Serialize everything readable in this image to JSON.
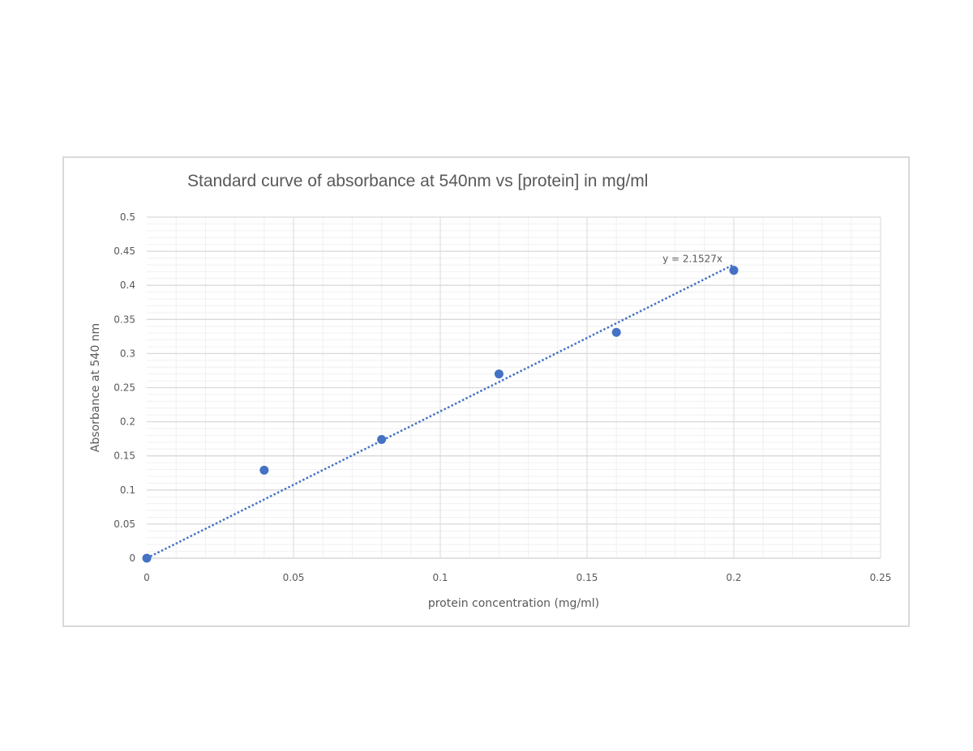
{
  "chart_data": {
    "type": "scatter",
    "title": "Standard curve of absorbance at 540nm vs [protein] in mg/ml",
    "xlabel": "protein concentration (mg/ml)",
    "ylabel": "Absorbance at 540 nm",
    "xlim": [
      0,
      0.25
    ],
    "ylim": [
      0,
      0.5
    ],
    "x_ticks": [
      "0",
      "0.05",
      "0.1",
      "0.15",
      "0.2",
      "0.25"
    ],
    "y_ticks": [
      "0",
      "0.05",
      "0.1",
      "0.15",
      "0.2",
      "0.25",
      "0.3",
      "0.35",
      "0.4",
      "0.45",
      "0.5"
    ],
    "grid": true,
    "legend": "none",
    "series": [
      {
        "x": [
          0,
          0.04,
          0.08,
          0.12,
          0.16,
          0.2
        ],
        "y": [
          0,
          0.129,
          0.174,
          0.27,
          0.331,
          0.422
        ],
        "color": "#4472c4"
      }
    ],
    "trendline": {
      "type": "linear",
      "slope": 2.1527,
      "intercept": 0,
      "x_range": [
        0,
        0.2
      ],
      "equation": "y = 2.1527x",
      "color": "#4472c4",
      "style": "dotted"
    }
  }
}
